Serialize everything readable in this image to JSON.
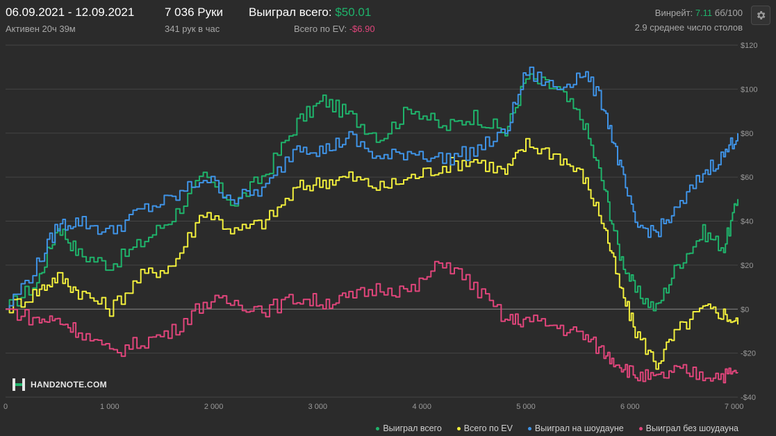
{
  "header": {
    "date_range": "06.09.2021 - 12.09.2021",
    "active_time": "Активен 20ч 39м",
    "hands": "7 036 Руки",
    "hands_per_hour": "341 рук в час",
    "total_won_label": "Выиграл всего:",
    "total_won_value": "$50.01",
    "ev_label": "Всего по EV:",
    "ev_value": "-$6.90",
    "winrate_label": "Винрейт:",
    "winrate_value": "7.11",
    "winrate_unit": "бб/100",
    "avg_tables": "2.9 среднее число столов"
  },
  "logo": {
    "text": "HAND2NOTE.COM",
    "icon": "h2n-logo-icon"
  },
  "settings_icon": "gear-icon",
  "colors": {
    "background": "#2b2b2b",
    "grid": "#454545",
    "zero_line": "#8a8a8a",
    "total": "#1fb36b",
    "ev": "#f2ef3c",
    "showdown": "#3f93e6",
    "non_showdown": "#e0457b",
    "positive": "#1fb36b",
    "negative": "#e0457b"
  },
  "chart_data": {
    "type": "line",
    "xlabel": "",
    "ylabel": "",
    "xlim": [
      0,
      7036
    ],
    "ylim": [
      -40,
      120
    ],
    "x_ticks": [
      0,
      1000,
      2000,
      3000,
      4000,
      5000,
      6000,
      7000
    ],
    "x_tick_labels": [
      "0",
      "1 000",
      "2 000",
      "3 000",
      "4 000",
      "5 000",
      "6 000",
      "7 000"
    ],
    "y_ticks": [
      120,
      100,
      80,
      60,
      40,
      20,
      0,
      -20,
      -40
    ],
    "y_tick_labels": [
      "$120",
      "$100",
      "$80",
      "$60",
      "$40",
      "$20",
      "$0",
      "-$20",
      "-$40"
    ],
    "grid": true,
    "legend_position": "bottom-right",
    "x": [
      0,
      300,
      500,
      700,
      1000,
      1300,
      1600,
      1900,
      2200,
      2500,
      2800,
      3050,
      3300,
      3600,
      3900,
      4200,
      4500,
      4800,
      5000,
      5300,
      5550,
      5750,
      5900,
      6050,
      6250,
      6450,
      6700,
      6900,
      7036
    ],
    "series": [
      {
        "name": "Выиграл всего",
        "color_key": "total",
        "values": [
          0,
          12,
          38,
          25,
          20,
          30,
          42,
          60,
          48,
          62,
          85,
          95,
          88,
          78,
          92,
          82,
          88,
          80,
          105,
          100,
          85,
          55,
          25,
          8,
          0,
          20,
          35,
          28,
          50
        ]
      },
      {
        "name": "Всего по EV",
        "color_key": "ev",
        "values": [
          0,
          8,
          15,
          8,
          0,
          15,
          20,
          45,
          35,
          40,
          55,
          58,
          60,
          55,
          60,
          65,
          68,
          62,
          75,
          70,
          60,
          38,
          10,
          -10,
          -25,
          -10,
          0,
          -2,
          -7
        ]
      },
      {
        "name": "Выиграл на шоудауне",
        "color_key": "showdown",
        "values": [
          0,
          20,
          38,
          40,
          35,
          45,
          50,
          60,
          50,
          55,
          75,
          72,
          78,
          68,
          72,
          68,
          72,
          80,
          108,
          100,
          108,
          92,
          65,
          38,
          35,
          45,
          62,
          70,
          80
        ]
      },
      {
        "name": "Выиграл без шоудауна",
        "color_key": "non_showdown",
        "values": [
          0,
          -5,
          -5,
          -10,
          -20,
          -15,
          -10,
          3,
          3,
          0,
          5,
          3,
          5,
          10,
          8,
          22,
          10,
          -5,
          -5,
          -8,
          -12,
          -20,
          -25,
          -30,
          -32,
          -28,
          -30,
          -30,
          -29
        ]
      }
    ]
  }
}
